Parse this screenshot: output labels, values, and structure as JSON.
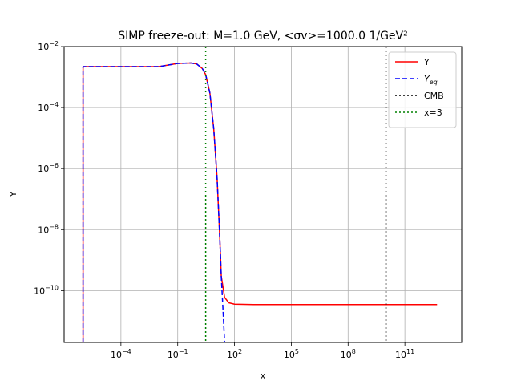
{
  "chart_data": {
    "type": "line",
    "title": "SIMP freeze-out: M=1.0 GeV, <σv>=1000.0 1/GeV²",
    "xlabel": "x",
    "ylabel": "Y",
    "xscale": "log",
    "yscale": "log",
    "xlim": [
      1e-07,
      100000000000000.0
    ],
    "ylim": [
      2e-12,
      0.01
    ],
    "grid": true,
    "legend_position": "top-right",
    "x_ticks": [
      {
        "base": "10",
        "exp": "−4",
        "value": 0.0001
      },
      {
        "base": "10",
        "exp": "−1",
        "value": 0.1
      },
      {
        "base": "10",
        "exp": "2",
        "value": 100
      },
      {
        "base": "10",
        "exp": "5",
        "value": 100000.0
      },
      {
        "base": "10",
        "exp": "8",
        "value": 100000000.0
      },
      {
        "base": "10",
        "exp": "11",
        "value": 100000000000.0
      }
    ],
    "y_ticks": [
      {
        "base": "10",
        "exp": "−2",
        "value": 0.01
      },
      {
        "base": "10",
        "exp": "−4",
        "value": 0.0001
      },
      {
        "base": "10",
        "exp": "−6",
        "value": 1e-06
      },
      {
        "base": "10",
        "exp": "−8",
        "value": 1e-08
      },
      {
        "base": "10",
        "exp": "−10",
        "value": 1e-10
      }
    ],
    "series": [
      {
        "name": "Y",
        "color": "#ff0000",
        "style": "solid",
        "points": [
          [
            1e-06,
            2e-12
          ],
          [
            1e-06,
            0.0022
          ],
          [
            0.01,
            0.0022
          ],
          [
            0.05,
            0.0026
          ],
          [
            0.1,
            0.0028
          ],
          [
            0.5,
            0.0029
          ],
          [
            1,
            0.0027
          ],
          [
            2,
            0.0019
          ],
          [
            3,
            0.0012
          ],
          [
            5,
            0.0003
          ],
          [
            8,
            2e-05
          ],
          [
            12,
            5e-07
          ],
          [
            16,
            1e-08
          ],
          [
            20,
            3e-10
          ],
          [
            30,
            6e-11
          ],
          [
            50,
            4e-11
          ],
          [
            100,
            3.6e-11
          ],
          [
            1000.0,
            3.5e-11
          ],
          [
            100000.0,
            3.5e-11
          ],
          [
            10000000000.0,
            3.5e-11
          ],
          [
            5000000000000.0,
            3.5e-11
          ]
        ]
      },
      {
        "name": "Y_eq",
        "color": "#0000ff",
        "style": "dashed",
        "points": [
          [
            1e-06,
            2e-12
          ],
          [
            1e-06,
            0.0022
          ],
          [
            0.01,
            0.0022
          ],
          [
            0.05,
            0.0026
          ],
          [
            0.1,
            0.0028
          ],
          [
            0.5,
            0.0029
          ],
          [
            1,
            0.0027
          ],
          [
            2,
            0.0019
          ],
          [
            3,
            0.0012
          ],
          [
            5,
            0.0003
          ],
          [
            8,
            2e-05
          ],
          [
            12,
            5e-07
          ],
          [
            16,
            1e-08
          ],
          [
            20,
            3e-10
          ],
          [
            25,
            2e-11
          ],
          [
            30,
            2e-12
          ]
        ]
      }
    ],
    "vlines": [
      {
        "name": "CMB",
        "x": 10000000000.0,
        "color": "#000000",
        "style": "dotted"
      },
      {
        "name": "x=3",
        "x": 3,
        "color": "#008000",
        "style": "dotted"
      }
    ],
    "legend": [
      {
        "label": "Y",
        "sub": "",
        "color": "#ff0000",
        "style": "solid"
      },
      {
        "label": "Y",
        "sub": "eq",
        "color": "#0000ff",
        "style": "dashed"
      },
      {
        "label": "CMB",
        "sub": "",
        "color": "#000000",
        "style": "dotted"
      },
      {
        "label": "x=3",
        "sub": "",
        "color": "#008000",
        "style": "dotted"
      }
    ]
  }
}
